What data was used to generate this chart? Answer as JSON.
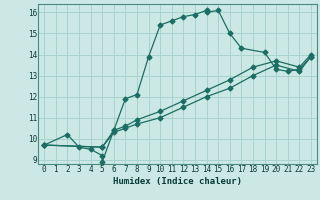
{
  "xlabel": "Humidex (Indice chaleur)",
  "xlim": [
    -0.5,
    23.5
  ],
  "ylim": [
    8.8,
    16.4
  ],
  "yticks": [
    9,
    10,
    11,
    12,
    13,
    14,
    15,
    16
  ],
  "xticks": [
    0,
    1,
    2,
    3,
    4,
    5,
    6,
    7,
    8,
    9,
    10,
    11,
    12,
    13,
    14,
    15,
    16,
    17,
    18,
    19,
    20,
    21,
    22,
    23
  ],
  "background_color": "#cce8e4",
  "grid_color": "#a8d4ce",
  "line_color": "#1a6e64",
  "line1_x": [
    0,
    2,
    3,
    4,
    5,
    5,
    6,
    7,
    8,
    9,
    10,
    11,
    12,
    13,
    14,
    14,
    15,
    16,
    17,
    19,
    20,
    21,
    22,
    23
  ],
  "line1_y": [
    9.7,
    10.2,
    9.6,
    9.5,
    9.2,
    8.9,
    10.4,
    11.9,
    12.1,
    13.9,
    15.4,
    15.6,
    15.8,
    15.9,
    16.1,
    16.0,
    16.1,
    15.0,
    14.3,
    14.1,
    13.3,
    13.2,
    13.3,
    13.9
  ],
  "line2_x": [
    0,
    5,
    6,
    7,
    8,
    10,
    12,
    14,
    16,
    18,
    20,
    22,
    23
  ],
  "line2_y": [
    9.7,
    9.6,
    10.3,
    10.5,
    10.7,
    11.0,
    11.5,
    12.0,
    12.4,
    13.0,
    13.5,
    13.2,
    13.9
  ],
  "line3_x": [
    0,
    5,
    6,
    7,
    8,
    10,
    12,
    14,
    16,
    18,
    20,
    22,
    23
  ],
  "line3_y": [
    9.7,
    9.6,
    10.4,
    10.6,
    10.9,
    11.3,
    11.8,
    12.3,
    12.8,
    13.4,
    13.7,
    13.4,
    14.0
  ],
  "markersize": 2.5
}
